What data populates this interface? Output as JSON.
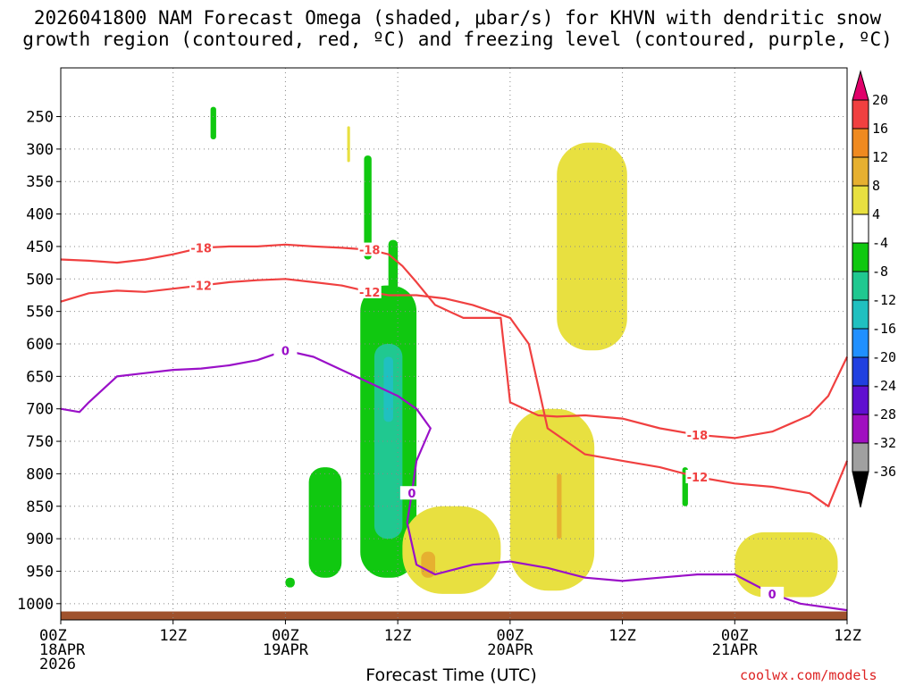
{
  "title": {
    "line1": "2026041800 NAM Forecast Omega (shaded, μbar/s) for KHVN with dendritic snow",
    "line2": "growth region (contoured, red, ºC) and freezing level (contoured, purple, ºC)"
  },
  "credit": "coolwx.com/models",
  "chart_data": {
    "type": "time-height cross section",
    "xlabel": "Forecast Time (UTC)",
    "x_range_hours": [
      0,
      84
    ],
    "x_ticks": [
      {
        "hour": 0,
        "lines": [
          "00Z",
          "18APR",
          "2026"
        ]
      },
      {
        "hour": 12,
        "lines": [
          "12Z"
        ]
      },
      {
        "hour": 24,
        "lines": [
          "00Z",
          "19APR"
        ]
      },
      {
        "hour": 36,
        "lines": [
          "12Z"
        ]
      },
      {
        "hour": 48,
        "lines": [
          "00Z",
          "20APR"
        ]
      },
      {
        "hour": 60,
        "lines": [
          "12Z"
        ]
      },
      {
        "hour": 72,
        "lines": [
          "00Z",
          "21APR"
        ]
      },
      {
        "hour": 84,
        "lines": [
          "12Z"
        ]
      }
    ],
    "ylabel": "Pressure (hPa)",
    "y_range_hpa": [
      175,
      1025
    ],
    "y_ticks": [
      250,
      300,
      350,
      400,
      450,
      500,
      550,
      600,
      650,
      700,
      750,
      800,
      850,
      900,
      950,
      1000
    ],
    "grid": true,
    "colorbar": {
      "labels": [
        "20",
        "16",
        "12",
        "8",
        "4",
        "-4",
        "-8",
        "-12",
        "-16",
        "-20",
        "-24",
        "-28",
        "-32",
        "-36"
      ],
      "colors": [
        "#e0006a",
        "#f04040",
        "#ef8a20",
        "#e6b030",
        "#e8e040",
        "#ffffff",
        "#10c810",
        "#20c890",
        "#20c0c0",
        "#2090ff",
        "#2040e0",
        "#6010d0",
        "#a010c0",
        "#a0a0a0",
        "#000000"
      ]
    },
    "omega_shading": [
      {
        "level": "-4 to -8",
        "color": "#10c810",
        "t_hours": [
          16.0,
          16.6
        ],
        "p_hpa": [
          235,
          285
        ]
      },
      {
        "level": "4 to 8",
        "color": "#e8e040",
        "t_hours": [
          30.6,
          30.9
        ],
        "p_hpa": [
          265,
          320
        ]
      },
      {
        "level": "-4 to -8",
        "color": "#10c810",
        "t_hours": [
          32.4,
          33.2
        ],
        "p_hpa": [
          310,
          470
        ]
      },
      {
        "level": "-4 to -8",
        "color": "#10c810",
        "t_hours": [
          35.0,
          36.0
        ],
        "p_hpa": [
          440,
          650
        ]
      },
      {
        "level": "-4 to -8",
        "color": "#10c810",
        "t_hours": [
          32.0,
          38.0
        ],
        "p_hpa": [
          510,
          960
        ]
      },
      {
        "level": "-8 to -12",
        "color": "#20c890",
        "t_hours": [
          33.5,
          36.5
        ],
        "p_hpa": [
          600,
          900
        ]
      },
      {
        "level": "-12 to -16",
        "color": "#20c0c0",
        "t_hours": [
          34.5,
          35.5
        ],
        "p_hpa": [
          620,
          720
        ]
      },
      {
        "level": "-4 to -8",
        "color": "#10c810",
        "t_hours": [
          26.5,
          30.0
        ],
        "p_hpa": [
          790,
          960
        ]
      },
      {
        "level": "-4 to -8",
        "color": "#10c810",
        "t_hours": [
          24.0,
          25.0
        ],
        "p_hpa": [
          960,
          975
        ]
      },
      {
        "level": "-4 to -8",
        "color": "#10c810",
        "t_hours": [
          66.4,
          67.0
        ],
        "p_hpa": [
          790,
          850
        ]
      },
      {
        "level": "4 to 8",
        "color": "#e8e040",
        "t_hours": [
          53.0,
          60.5
        ],
        "p_hpa": [
          290,
          610
        ]
      },
      {
        "level": "4 to 8",
        "color": "#e8e040",
        "t_hours": [
          48.0,
          57.0
        ],
        "p_hpa": [
          700,
          980
        ]
      },
      {
        "level": "4 to 8",
        "color": "#e8e040",
        "t_hours": [
          36.5,
          47.0
        ],
        "p_hpa": [
          850,
          985
        ]
      },
      {
        "level": "8 to 12",
        "color": "#e6b030",
        "t_hours": [
          38.5,
          40.0
        ],
        "p_hpa": [
          920,
          960
        ]
      },
      {
        "level": "8 to 12",
        "color": "#e6b030",
        "t_hours": [
          53.0,
          53.5
        ],
        "p_hpa": [
          800,
          900
        ]
      },
      {
        "level": "4 to 8",
        "color": "#e8e040",
        "t_hours": [
          72.0,
          83.0
        ],
        "p_hpa": [
          890,
          990
        ]
      }
    ],
    "contours": [
      {
        "name": "dendritic -18",
        "label": "-18",
        "color": "#f04040",
        "t_hours": [
          0,
          3,
          6,
          9,
          12,
          15,
          18,
          21,
          24,
          27,
          30,
          33,
          35,
          36.5,
          38,
          40,
          43,
          47,
          48,
          51,
          53,
          56,
          60,
          64,
          68,
          72,
          76,
          80,
          82,
          84
        ],
        "p_hpa": [
          470,
          472,
          475,
          470,
          462,
          452,
          450,
          450,
          447,
          450,
          452,
          455,
          462,
          480,
          505,
          540,
          560,
          560,
          690,
          710,
          712,
          710,
          715,
          730,
          740,
          745,
          735,
          710,
          680,
          620
        ]
      },
      {
        "name": "dendritic -12",
        "label": "-12",
        "color": "#f04040",
        "t_hours": [
          0,
          3,
          6,
          9,
          12,
          15,
          18,
          21,
          24,
          27,
          30,
          33,
          35,
          38,
          41,
          44,
          46,
          48,
          50,
          52,
          56,
          60,
          64,
          68,
          72,
          76,
          80,
          82,
          84
        ],
        "p_hpa": [
          535,
          522,
          518,
          520,
          515,
          510,
          505,
          502,
          500,
          505,
          510,
          520,
          525,
          525,
          530,
          540,
          550,
          560,
          600,
          730,
          770,
          780,
          790,
          805,
          815,
          820,
          830,
          850,
          780
        ]
      },
      {
        "name": "freezing level 0",
        "label": "0",
        "color": "#9a10c8",
        "t_hours": [
          0,
          2,
          3,
          6,
          9,
          12,
          15,
          18,
          21,
          24,
          27,
          30,
          33,
          36,
          38,
          39.5,
          38,
          37.5,
          37,
          38,
          40,
          44,
          48,
          52,
          56,
          60,
          64,
          68,
          72,
          76,
          79,
          84
        ],
        "p_hpa": [
          700,
          705,
          690,
          650,
          645,
          640,
          638,
          633,
          625,
          610,
          620,
          640,
          660,
          680,
          700,
          730,
          780,
          830,
          875,
          940,
          955,
          940,
          935,
          945,
          960,
          965,
          960,
          955,
          955,
          985,
          1000,
          1010
        ]
      }
    ],
    "terrain_color": "#a0522d",
    "surface_p_hpa": 1012
  }
}
